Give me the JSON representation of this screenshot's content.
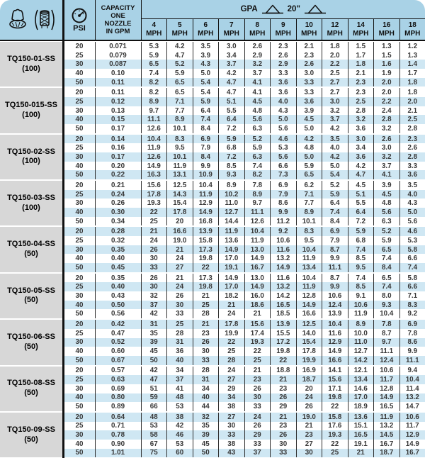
{
  "header": {
    "psi_label": "PSI",
    "capacity_lines": [
      "CAPACITY",
      "ONE",
      "NOZZLE",
      "IN GPM"
    ],
    "gpa_label": "GPA",
    "spacing_label": "20\"",
    "mph_suffix": "MPH",
    "mph_columns": [
      "4",
      "5",
      "6",
      "7",
      "8",
      "9",
      "10",
      "12",
      "14",
      "16",
      "18"
    ],
    "icons": [
      "nozzle-tip-icon",
      "strainer-icon",
      "pressure-gauge-icon",
      "spray-fan-icon"
    ],
    "colors": {
      "header_bg": "#a9d2e6",
      "stripe_bg": "#cfe7f3",
      "label_bg": "#d7d7d7",
      "border": "#111111"
    }
  },
  "groups": [
    {
      "model": "TQ150-01-SS",
      "strainer": "(100)",
      "rows": [
        {
          "psi": "20",
          "gpm": "0.071",
          "gpa": [
            "5.3",
            "4.2",
            "3.5",
            "3.0",
            "2.6",
            "2.3",
            "2.1",
            "1.8",
            "1.5",
            "1.3",
            "1.2"
          ]
        },
        {
          "psi": "25",
          "gpm": "0.079",
          "gpa": [
            "5.9",
            "4.7",
            "3.9",
            "3.4",
            "2.9",
            "2.6",
            "2.3",
            "2.0",
            "1.7",
            "1.5",
            "1.3"
          ]
        },
        {
          "psi": "30",
          "gpm": "0.087",
          "gpa": [
            "6.5",
            "5.2",
            "4.3",
            "3.7",
            "3.2",
            "2.9",
            "2.6",
            "2.2",
            "1.8",
            "1.6",
            "1.4"
          ]
        },
        {
          "psi": "40",
          "gpm": "0.10",
          "gpa": [
            "7.4",
            "5.9",
            "5.0",
            "4.2",
            "3.7",
            "3.3",
            "3.0",
            "2.5",
            "2.1",
            "1.9",
            "1.7"
          ]
        },
        {
          "psi": "50",
          "gpm": "0.11",
          "gpa": [
            "8.2",
            "6.5",
            "5.4",
            "4.7",
            "4.1",
            "3.6",
            "3.3",
            "2.7",
            "2.3",
            "2.0",
            "1.8"
          ]
        }
      ]
    },
    {
      "model": "TQ150-015-SS",
      "strainer": "(100)",
      "rows": [
        {
          "psi": "20",
          "gpm": "0.11",
          "gpa": [
            "8.2",
            "6.5",
            "5.4",
            "4.7",
            "4.1",
            "3.6",
            "3.3",
            "2.7",
            "2.3",
            "2.0",
            "1.8"
          ]
        },
        {
          "psi": "25",
          "gpm": "0.12",
          "gpa": [
            "8.9",
            "7.1",
            "5.9",
            "5.1",
            "4.5",
            "4.0",
            "3.6",
            "3.0",
            "2.5",
            "2.2",
            "2.0"
          ]
        },
        {
          "psi": "30",
          "gpm": "0.13",
          "gpa": [
            "9.7",
            "7.7",
            "6.4",
            "5.5",
            "4.8",
            "4.3",
            "3.9",
            "3.2",
            "2.8",
            "2.4",
            "2.1"
          ]
        },
        {
          "psi": "40",
          "gpm": "0.15",
          "gpa": [
            "11.1",
            "8.9",
            "7.4",
            "6.4",
            "5.6",
            "5.0",
            "4.5",
            "3.7",
            "3.2",
            "2.8",
            "2.5"
          ]
        },
        {
          "psi": "50",
          "gpm": "0.17",
          "gpa": [
            "12.6",
            "10.1",
            "8.4",
            "7.2",
            "6.3",
            "5.6",
            "5.0",
            "4.2",
            "3.6",
            "3.2",
            "2.8"
          ]
        }
      ]
    },
    {
      "model": "TQ150-02-SS",
      "strainer": "(100)",
      "rows": [
        {
          "psi": "20",
          "gpm": "0.14",
          "gpa": [
            "10.4",
            "8.3",
            "6.9",
            "5.9",
            "5.2",
            "4.6",
            "4.2",
            "3.5",
            "3.0",
            "2.6",
            "2.3"
          ]
        },
        {
          "psi": "25",
          "gpm": "0.16",
          "gpa": [
            "11.9",
            "9.5",
            "7.9",
            "6.8",
            "5.9",
            "5.3",
            "4.8",
            "4.0",
            "3.4",
            "3.0",
            "2.6"
          ]
        },
        {
          "psi": "30",
          "gpm": "0.17",
          "gpa": [
            "12.6",
            "10.1",
            "8.4",
            "7.2",
            "6.3",
            "5.6",
            "5.0",
            "4.2",
            "3.6",
            "3.2",
            "2.8"
          ]
        },
        {
          "psi": "40",
          "gpm": "0.20",
          "gpa": [
            "14.9",
            "11.9",
            "9.9",
            "8.5",
            "7.4",
            "6.6",
            "5.9",
            "5.0",
            "4.2",
            "3.7",
            "3.3"
          ]
        },
        {
          "psi": "50",
          "gpm": "0.22",
          "gpa": [
            "16.3",
            "13.1",
            "10.9",
            "9.3",
            "8.2",
            "7.3",
            "6.5",
            "5.4",
            "4.7",
            "4.1",
            "3.6"
          ]
        }
      ]
    },
    {
      "model": "TQ150-03-SS",
      "strainer": "(100)",
      "rows": [
        {
          "psi": "20",
          "gpm": "0.21",
          "gpa": [
            "15.6",
            "12.5",
            "10.4",
            "8.9",
            "7.8",
            "6.9",
            "6.2",
            "5.2",
            "4.5",
            "3.9",
            "3.5"
          ]
        },
        {
          "psi": "25",
          "gpm": "0.24",
          "gpa": [
            "17.8",
            "14.3",
            "11.9",
            "10.2",
            "8.9",
            "7.9",
            "7.1",
            "5.9",
            "5.1",
            "4.5",
            "4.0"
          ]
        },
        {
          "psi": "30",
          "gpm": "0.26",
          "gpa": [
            "19.3",
            "15.4",
            "12.9",
            "11.0",
            "9.7",
            "8.6",
            "7.7",
            "6.4",
            "5.5",
            "4.8",
            "4.3"
          ]
        },
        {
          "psi": "40",
          "gpm": "0.30",
          "gpa": [
            "22",
            "17.8",
            "14.9",
            "12.7",
            "11.1",
            "9.9",
            "8.9",
            "7.4",
            "6.4",
            "5.6",
            "5.0"
          ]
        },
        {
          "psi": "50",
          "gpm": "0.34",
          "gpa": [
            "25",
            "20",
            "16.8",
            "14.4",
            "12.6",
            "11.2",
            "10.1",
            "8.4",
            "7.2",
            "6.3",
            "5.6"
          ]
        }
      ]
    },
    {
      "model": "TQ150-04-SS",
      "strainer": "(50)",
      "rows": [
        {
          "psi": "20",
          "gpm": "0.28",
          "gpa": [
            "21",
            "16.6",
            "13.9",
            "11.9",
            "10.4",
            "9.2",
            "8.3",
            "6.9",
            "5.9",
            "5.2",
            "4.6"
          ]
        },
        {
          "psi": "25",
          "gpm": "0.32",
          "gpa": [
            "24",
            "19.0",
            "15.8",
            "13.6",
            "11.9",
            "10.6",
            "9.5",
            "7.9",
            "6.8",
            "5.9",
            "5.3"
          ]
        },
        {
          "psi": "30",
          "gpm": "0.35",
          "gpa": [
            "26",
            "21",
            "17.3",
            "14.9",
            "13.0",
            "11.6",
            "10.4",
            "8.7",
            "7.4",
            "6.5",
            "5.8"
          ]
        },
        {
          "psi": "40",
          "gpm": "0.40",
          "gpa": [
            "30",
            "24",
            "19.8",
            "17.0",
            "14.9",
            "13.2",
            "11.9",
            "9.9",
            "8.5",
            "7.4",
            "6.6"
          ]
        },
        {
          "psi": "50",
          "gpm": "0.45",
          "gpa": [
            "33",
            "27",
            "22",
            "19.1",
            "16.7",
            "14.9",
            "13.4",
            "11.1",
            "9.5",
            "8.4",
            "7.4"
          ]
        }
      ]
    },
    {
      "model": "TQ150-05-SS",
      "strainer": "(50)",
      "rows": [
        {
          "psi": "20",
          "gpm": "0.35",
          "gpa": [
            "26",
            "21",
            "17.3",
            "14.9",
            "13.0",
            "11.6",
            "10.4",
            "8.7",
            "7.4",
            "6.5",
            "5.8"
          ]
        },
        {
          "psi": "25",
          "gpm": "0.40",
          "gpa": [
            "30",
            "24",
            "19.8",
            "17.0",
            "14.9",
            "13.2",
            "11.9",
            "9.9",
            "8.5",
            "7.4",
            "6.6"
          ]
        },
        {
          "psi": "30",
          "gpm": "0.43",
          "gpa": [
            "32",
            "26",
            "21",
            "18.2",
            "16.0",
            "14.2",
            "12.8",
            "10.6",
            "9.1",
            "8.0",
            "7.1"
          ]
        },
        {
          "psi": "40",
          "gpm": "0.50",
          "gpa": [
            "37",
            "30",
            "25",
            "21",
            "18.6",
            "16.5",
            "14.9",
            "12.4",
            "10.6",
            "9.3",
            "8.3"
          ]
        },
        {
          "psi": "50",
          "gpm": "0.56",
          "gpa": [
            "42",
            "33",
            "28",
            "24",
            "21",
            "18.5",
            "16.6",
            "13.9",
            "11.9",
            "10.4",
            "9.2"
          ]
        }
      ]
    },
    {
      "model": "TQ150-06-SS",
      "strainer": "(50)",
      "rows": [
        {
          "psi": "20",
          "gpm": "0.42",
          "gpa": [
            "31",
            "25",
            "21",
            "17.8",
            "15.6",
            "13.9",
            "12.5",
            "10.4",
            "8.9",
            "7.8",
            "6.9"
          ]
        },
        {
          "psi": "25",
          "gpm": "0.47",
          "gpa": [
            "35",
            "28",
            "23",
            "19.9",
            "17.4",
            "15.5",
            "14.0",
            "11.6",
            "10.0",
            "8.7",
            "7.8"
          ]
        },
        {
          "psi": "30",
          "gpm": "0.52",
          "gpa": [
            "39",
            "31",
            "26",
            "22",
            "19.3",
            "17.2",
            "15.4",
            "12.9",
            "11.0",
            "9.7",
            "8.6"
          ]
        },
        {
          "psi": "40",
          "gpm": "0.60",
          "gpa": [
            "45",
            "36",
            "30",
            "25",
            "22",
            "19.8",
            "17.8",
            "14.9",
            "12.7",
            "11.1",
            "9.9"
          ]
        },
        {
          "psi": "50",
          "gpm": "0.67",
          "gpa": [
            "50",
            "40",
            "33",
            "28",
            "25",
            "22",
            "19.9",
            "16.6",
            "14.2",
            "12.4",
            "11.1"
          ]
        }
      ]
    },
    {
      "model": "TQ150-08-SS",
      "strainer": "(50)",
      "rows": [
        {
          "psi": "20",
          "gpm": "0.57",
          "gpa": [
            "42",
            "34",
            "28",
            "24",
            "21",
            "18.8",
            "16.9",
            "14.1",
            "12.1",
            "10.6",
            "9.4"
          ]
        },
        {
          "psi": "25",
          "gpm": "0.63",
          "gpa": [
            "47",
            "37",
            "31",
            "27",
            "23",
            "21",
            "18.7",
            "15.6",
            "13.4",
            "11.7",
            "10.4"
          ]
        },
        {
          "psi": "30",
          "gpm": "0.69",
          "gpa": [
            "51",
            "41",
            "34",
            "29",
            "26",
            "23",
            "20",
            "17.1",
            "14.6",
            "12.8",
            "11.4"
          ]
        },
        {
          "psi": "40",
          "gpm": "0.80",
          "gpa": [
            "59",
            "48",
            "40",
            "34",
            "30",
            "26",
            "24",
            "19.8",
            "17.0",
            "14.9",
            "13.2"
          ]
        },
        {
          "psi": "50",
          "gpm": "0.89",
          "gpa": [
            "66",
            "53",
            "44",
            "38",
            "33",
            "29",
            "26",
            "22",
            "18.9",
            "16.5",
            "14.7"
          ]
        }
      ]
    },
    {
      "model": "TQ150-09-SS",
      "strainer": "(50)",
      "rows": [
        {
          "psi": "20",
          "gpm": "0.64",
          "gpa": [
            "48",
            "38",
            "32",
            "27",
            "24",
            "21",
            "19.0",
            "15.8",
            "13.6",
            "11.9",
            "10.6"
          ]
        },
        {
          "psi": "25",
          "gpm": "0.71",
          "gpa": [
            "53",
            "42",
            "35",
            "30",
            "26",
            "23",
            "21",
            "17.6",
            "15.1",
            "13.2",
            "11.7"
          ]
        },
        {
          "psi": "30",
          "gpm": "0.78",
          "gpa": [
            "58",
            "46",
            "39",
            "33",
            "29",
            "26",
            "23",
            "19.3",
            "16.5",
            "14.5",
            "12.9"
          ]
        },
        {
          "psi": "40",
          "gpm": "0.90",
          "gpa": [
            "67",
            "53",
            "45",
            "38",
            "33",
            "30",
            "27",
            "22",
            "19.1",
            "16.7",
            "14.9"
          ]
        },
        {
          "psi": "50",
          "gpm": "1.01",
          "gpa": [
            "75",
            "60",
            "50",
            "43",
            "37",
            "33",
            "30",
            "25",
            "21",
            "18.7",
            "16.7"
          ]
        }
      ]
    }
  ]
}
